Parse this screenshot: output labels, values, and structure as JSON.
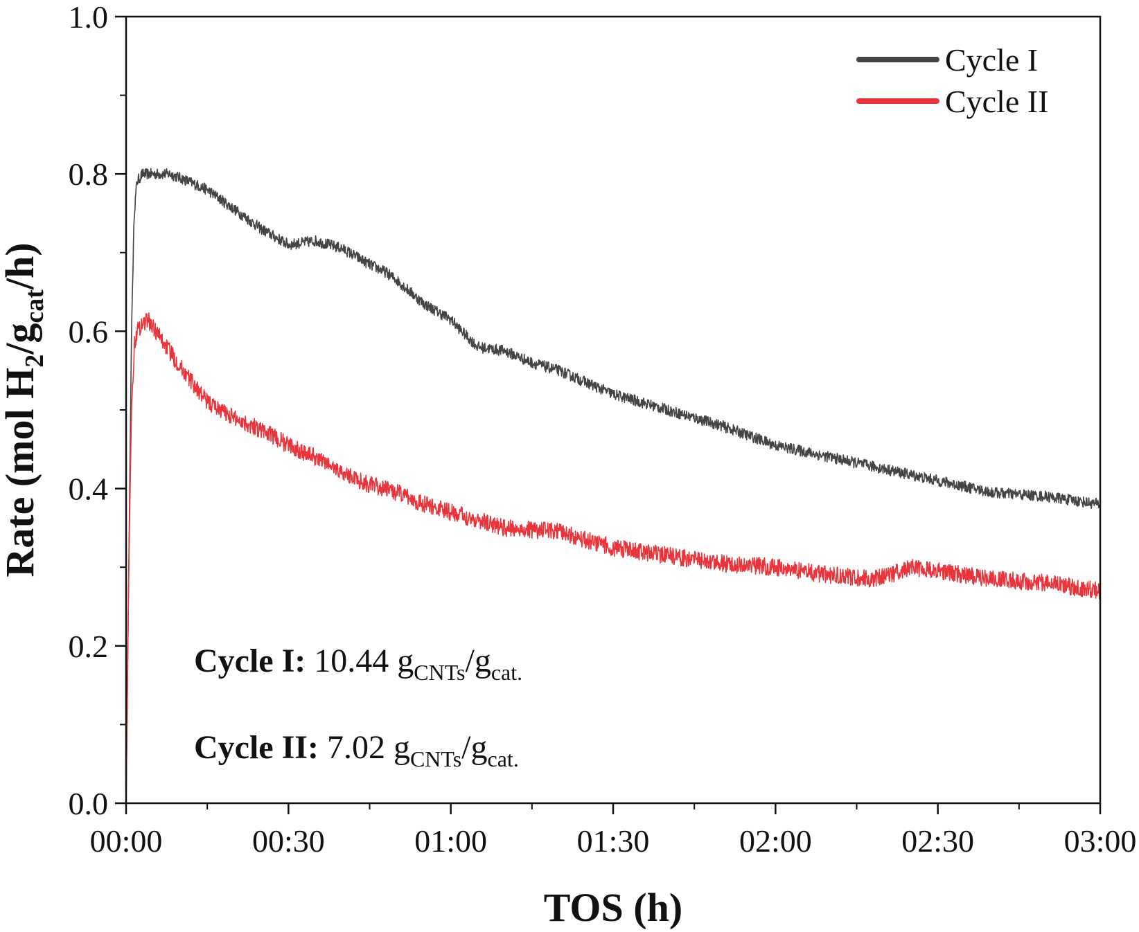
{
  "chart_data": {
    "type": "line",
    "title": "",
    "xlabel": "TOS (h)",
    "ylabel": {
      "prefix": "Rate (mol H",
      "sub1": "2",
      "mid": "/g",
      "sub2": "cat",
      "suffix": "/h)"
    },
    "xlim": [
      0,
      180
    ],
    "ylim": [
      0,
      1.0
    ],
    "x_ticks": [
      {
        "value": 0,
        "label": "00:00"
      },
      {
        "value": 30,
        "label": "00:30"
      },
      {
        "value": 60,
        "label": "01:00"
      },
      {
        "value": 90,
        "label": "01:30"
      },
      {
        "value": 120,
        "label": "02:00"
      },
      {
        "value": 150,
        "label": "02:30"
      },
      {
        "value": 180,
        "label": "03:00"
      }
    ],
    "y_ticks": [
      {
        "value": 0.0,
        "label": "0.0"
      },
      {
        "value": 0.2,
        "label": "0.2"
      },
      {
        "value": 0.4,
        "label": "0.4"
      },
      {
        "value": 0.6,
        "label": "0.6"
      },
      {
        "value": 0.8,
        "label": "0.8"
      },
      {
        "value": 1.0,
        "label": "1.0"
      }
    ],
    "x_unit": "minutes",
    "legend_position": "top-right",
    "series": [
      {
        "name": "Cycle I",
        "color": "#444444",
        "noise": 0.007,
        "x": [
          0,
          0.5,
          1,
          1.5,
          2,
          3,
          5,
          8,
          10,
          15,
          20,
          25,
          30,
          35,
          40,
          45,
          48,
          50,
          55,
          60,
          62,
          65,
          70,
          75,
          80,
          90,
          100,
          110,
          120,
          130,
          140,
          150,
          160,
          170,
          180
        ],
        "values": [
          0.0,
          0.3,
          0.6,
          0.75,
          0.79,
          0.8,
          0.8,
          0.8,
          0.795,
          0.78,
          0.755,
          0.73,
          0.71,
          0.715,
          0.705,
          0.685,
          0.675,
          0.665,
          0.635,
          0.615,
          0.6,
          0.58,
          0.575,
          0.56,
          0.55,
          0.52,
          0.5,
          0.48,
          0.455,
          0.44,
          0.425,
          0.41,
          0.395,
          0.39,
          0.38
        ]
      },
      {
        "name": "Cycle II",
        "color": "#e8343a",
        "noise": 0.011,
        "x": [
          0,
          0.5,
          1,
          1.5,
          2,
          3,
          4,
          6,
          10,
          15,
          20,
          25,
          30,
          35,
          40,
          45,
          50,
          55,
          60,
          70,
          80,
          90,
          100,
          110,
          120,
          130,
          138,
          141,
          145,
          150,
          160,
          170,
          180
        ],
        "values": [
          0.0,
          0.3,
          0.5,
          0.58,
          0.6,
          0.61,
          0.615,
          0.595,
          0.555,
          0.51,
          0.49,
          0.475,
          0.455,
          0.44,
          0.42,
          0.405,
          0.395,
          0.38,
          0.37,
          0.35,
          0.345,
          0.325,
          0.315,
          0.305,
          0.3,
          0.29,
          0.285,
          0.29,
          0.3,
          0.295,
          0.285,
          0.28,
          0.27
        ]
      }
    ],
    "annotations": [
      {
        "bold": "Cycle I:",
        "value": " 10.44 g",
        "sub1": "CNTs",
        "mid": "/g",
        "sub2": "cat."
      },
      {
        "bold": "Cycle II:",
        "value": " 7.02 g",
        "sub1": "CNTs",
        "mid": "/g",
        "sub2": "cat."
      }
    ]
  }
}
